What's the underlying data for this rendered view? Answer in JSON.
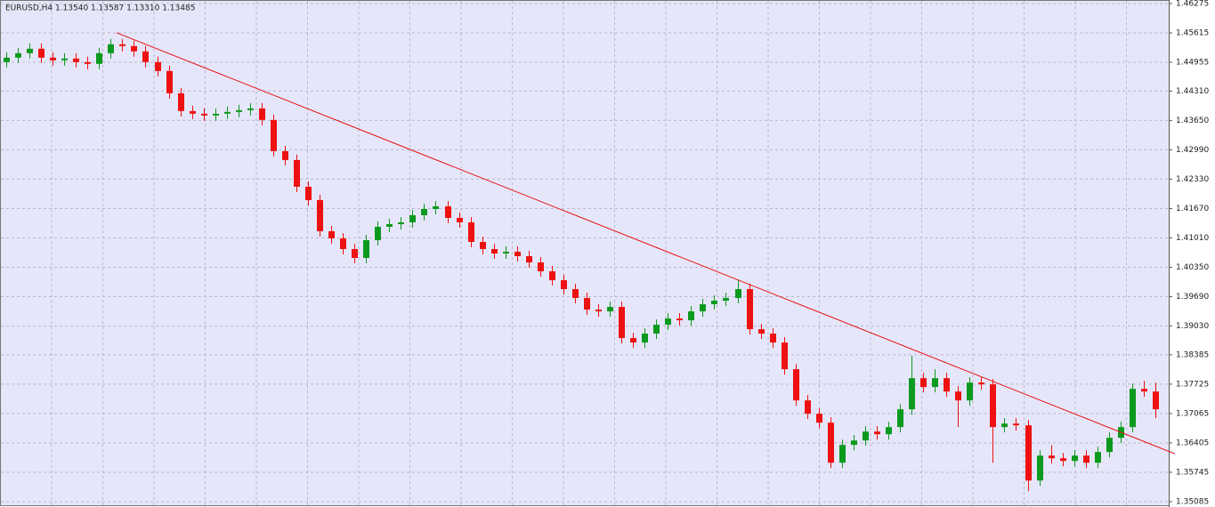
{
  "chart_data": {
    "type": "candlestick",
    "title": "EURUSD,H4  1.13540 1.13587 1.13310 1.13485",
    "bull_color": "#0b9a1e",
    "bear_color": "#ee1111",
    "trendline_color": "#e81010",
    "grid": true,
    "ylim": [
      1.35085,
      1.46275
    ],
    "yticks": [
      1.46275,
      1.45615,
      1.44955,
      {
        "value": 1.4431,
        "label": "1.44310"
      },
      {
        "value": 1.4365,
        "label": "1.43650"
      },
      {
        "value": 1.4299,
        "label": "1.42990"
      },
      {
        "value": 1.4233,
        "label": "1.42330"
      },
      {
        "value": 1.4167,
        "label": "1.41670"
      },
      {
        "value": 1.4101,
        "label": "1.41010"
      },
      {
        "value": 1.4035,
        "label": "1.40350"
      },
      {
        "value": 1.3969,
        "label": "1.39690"
      },
      {
        "value": 1.3903,
        "label": "1.39030"
      },
      1.38385,
      1.37725,
      1.37065,
      1.36405,
      1.35745,
      1.35085
    ],
    "trendline": {
      "start": 1.4562,
      "end": 1.3616
    },
    "ohlc": [
      [
        1.4496,
        1.4518,
        1.4484,
        1.4506
      ],
      [
        1.4506,
        1.4528,
        1.4494,
        1.4516
      ],
      [
        1.4516,
        1.4538,
        1.4504,
        1.4526
      ],
      [
        1.4526,
        1.4538,
        1.4494,
        1.4506
      ],
      [
        1.4506,
        1.4518,
        1.4488,
        1.45
      ],
      [
        1.45,
        1.4516,
        1.4488,
        1.4504
      ],
      [
        1.4504,
        1.4516,
        1.4484,
        1.4496
      ],
      [
        1.4496,
        1.4508,
        1.448,
        1.4492
      ],
      [
        1.4492,
        1.4528,
        1.448,
        1.4516
      ],
      [
        1.4516,
        1.4548,
        1.4504,
        1.4536
      ],
      [
        1.4536,
        1.4548,
        1.452,
        1.4532
      ],
      [
        1.4532,
        1.4544,
        1.4508,
        1.452
      ],
      [
        1.452,
        1.4532,
        1.4484,
        1.4496
      ],
      [
        1.4496,
        1.4508,
        1.4464,
        1.4476
      ],
      [
        1.4476,
        1.4488,
        1.4414,
        1.4426
      ],
      [
        1.4426,
        1.4438,
        1.4374,
        1.4386
      ],
      [
        1.4386,
        1.4398,
        1.4368,
        1.438
      ],
      [
        1.438,
        1.4392,
        1.4364,
        1.4376
      ],
      [
        1.4376,
        1.4392,
        1.4364,
        1.438
      ],
      [
        1.438,
        1.4396,
        1.4368,
        1.4384
      ],
      [
        1.4384,
        1.44,
        1.4372,
        1.4388
      ],
      [
        1.4388,
        1.4404,
        1.4376,
        1.4392
      ],
      [
        1.4392,
        1.4404,
        1.4354,
        1.4366
      ],
      [
        1.4366,
        1.4378,
        1.4284,
        1.4296
      ],
      [
        1.4296,
        1.4308,
        1.4264,
        1.4276
      ],
      [
        1.4276,
        1.4288,
        1.4204,
        1.4216
      ],
      [
        1.4216,
        1.4228,
        1.4174,
        1.4186
      ],
      [
        1.4186,
        1.4198,
        1.4104,
        1.4116
      ],
      [
        1.4116,
        1.4128,
        1.4088,
        1.41
      ],
      [
        1.41,
        1.4112,
        1.4064,
        1.4076
      ],
      [
        1.4076,
        1.4088,
        1.4044,
        1.4056
      ],
      [
        1.4056,
        1.4108,
        1.4044,
        1.4096
      ],
      [
        1.4096,
        1.4138,
        1.4084,
        1.4126
      ],
      [
        1.4126,
        1.4144,
        1.4114,
        1.4132
      ],
      [
        1.4132,
        1.4148,
        1.412,
        1.4136
      ],
      [
        1.4136,
        1.4164,
        1.4124,
        1.4152
      ],
      [
        1.4152,
        1.4178,
        1.414,
        1.4166
      ],
      [
        1.4166,
        1.4184,
        1.4154,
        1.4172
      ],
      [
        1.4172,
        1.4184,
        1.4134,
        1.4146
      ],
      [
        1.4146,
        1.4158,
        1.4124,
        1.4136
      ],
      [
        1.4136,
        1.4148,
        1.408,
        1.4092
      ],
      [
        1.4092,
        1.4104,
        1.4064,
        1.4076
      ],
      [
        1.4076,
        1.4088,
        1.4054,
        1.4066
      ],
      [
        1.4066,
        1.4082,
        1.4054,
        1.407
      ],
      [
        1.407,
        1.4082,
        1.4048,
        1.406
      ],
      [
        1.406,
        1.4072,
        1.4034,
        1.4046
      ],
      [
        1.4046,
        1.4058,
        1.4014,
        1.4026
      ],
      [
        1.4026,
        1.4038,
        1.3994,
        1.4006
      ],
      [
        1.4006,
        1.4018,
        1.3974,
        1.3986
      ],
      [
        1.3986,
        1.3998,
        1.3954,
        1.3966
      ],
      [
        1.3966,
        1.3978,
        1.3928,
        1.394
      ],
      [
        1.394,
        1.3952,
        1.3924,
        1.3936
      ],
      [
        1.3936,
        1.3958,
        1.3924,
        1.3946
      ],
      [
        1.3946,
        1.3958,
        1.3864,
        1.3876
      ],
      [
        1.3876,
        1.3888,
        1.3854,
        1.3866
      ],
      [
        1.3866,
        1.3898,
        1.3854,
        1.3886
      ],
      [
        1.3886,
        1.3918,
        1.3874,
        1.3906
      ],
      [
        1.3906,
        1.3932,
        1.3894,
        1.392
      ],
      [
        1.392,
        1.3932,
        1.3904,
        1.3916
      ],
      [
        1.3916,
        1.3948,
        1.3904,
        1.3936
      ],
      [
        1.3936,
        1.3964,
        1.3924,
        1.3952
      ],
      [
        1.3952,
        1.3972,
        1.394,
        1.396
      ],
      [
        1.396,
        1.3978,
        1.3948,
        1.3966
      ],
      [
        1.3966,
        1.4008,
        1.3954,
        1.3986
      ],
      [
        1.3986,
        1.3998,
        1.3884,
        1.3896
      ],
      [
        1.3896,
        1.3908,
        1.3874,
        1.3886
      ],
      [
        1.3886,
        1.3898,
        1.3854,
        1.3866
      ],
      [
        1.3866,
        1.3878,
        1.3794,
        1.3806
      ],
      [
        1.3806,
        1.3818,
        1.3724,
        1.3736
      ],
      [
        1.3736,
        1.3748,
        1.3694,
        1.3706
      ],
      [
        1.3706,
        1.3718,
        1.3674,
        1.3686
      ],
      [
        1.3686,
        1.3698,
        1.3584,
        1.3596
      ],
      [
        1.3596,
        1.3648,
        1.3584,
        1.3636
      ],
      [
        1.3636,
        1.3658,
        1.3624,
        1.3646
      ],
      [
        1.3646,
        1.3678,
        1.3634,
        1.3666
      ],
      [
        1.3666,
        1.3678,
        1.3648,
        1.366
      ],
      [
        1.366,
        1.3688,
        1.3648,
        1.3676
      ],
      [
        1.3676,
        1.3728,
        1.3664,
        1.3716
      ],
      [
        1.3716,
        1.3836,
        1.3704,
        1.3786
      ],
      [
        1.3786,
        1.3798,
        1.3754,
        1.3766
      ],
      [
        1.3766,
        1.3806,
        1.3754,
        1.3786
      ],
      [
        1.3786,
        1.3798,
        1.3744,
        1.3756
      ],
      [
        1.3756,
        1.3768,
        1.3676,
        1.3736
      ],
      [
        1.3736,
        1.3788,
        1.3724,
        1.3776
      ],
      [
        1.3776,
        1.3788,
        1.376,
        1.3772
      ],
      [
        1.3772,
        1.3784,
        1.3596,
        1.3676
      ],
      [
        1.3676,
        1.3696,
        1.3664,
        1.3684
      ],
      [
        1.3684,
        1.3696,
        1.3668,
        1.368
      ],
      [
        1.368,
        1.3692,
        1.3532,
        1.3556
      ],
      [
        1.3556,
        1.3624,
        1.3544,
        1.3612
      ],
      [
        1.3612,
        1.3636,
        1.3594,
        1.3606
      ],
      [
        1.3606,
        1.3618,
        1.3588,
        1.36
      ],
      [
        1.36,
        1.3624,
        1.3588,
        1.3612
      ],
      [
        1.3612,
        1.3624,
        1.3584,
        1.3596
      ],
      [
        1.3596,
        1.3632,
        1.3584,
        1.362
      ],
      [
        1.362,
        1.3664,
        1.3608,
        1.3652
      ],
      [
        1.3652,
        1.3688,
        1.364,
        1.3676
      ],
      [
        1.3676,
        1.3774,
        1.3664,
        1.3762
      ],
      [
        1.3762,
        1.378,
        1.3744,
        1.3756
      ],
      [
        1.3756,
        1.3776,
        1.3696,
        1.3716
      ]
    ]
  }
}
